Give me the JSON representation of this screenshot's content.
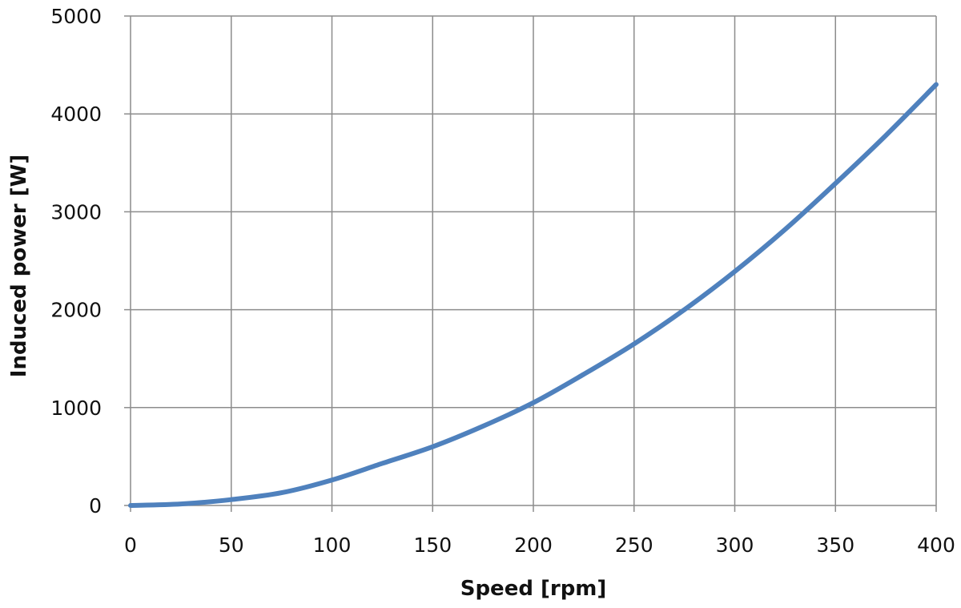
{
  "chart_data": {
    "type": "line",
    "title": "",
    "xlabel": "Speed [rpm]",
    "ylabel": "Induced power [W]",
    "xlim": [
      0,
      400
    ],
    "ylim": [
      0,
      5000
    ],
    "xticks": [
      0,
      50,
      100,
      150,
      200,
      250,
      300,
      350,
      400
    ],
    "yticks": [
      0,
      1000,
      2000,
      3000,
      4000,
      5000
    ],
    "grid": true,
    "legend": "none",
    "series": [
      {
        "color": "#4f81bd",
        "x": [
          0,
          25,
          50,
          75,
          100,
          125,
          150,
          175,
          200,
          225,
          250,
          275,
          300,
          325,
          350,
          375,
          400
        ],
        "y": [
          0,
          15,
          60,
          130,
          260,
          430,
          600,
          810,
          1050,
          1340,
          1650,
          2000,
          2390,
          2820,
          3290,
          3780,
          4300
        ]
      }
    ]
  }
}
